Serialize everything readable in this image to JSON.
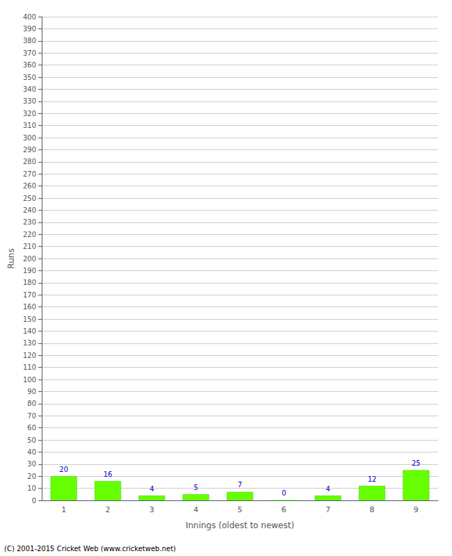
{
  "chart_data": {
    "type": "bar",
    "xlabel": "Innings (oldest to newest)",
    "ylabel": "Runs",
    "categories": [
      "1",
      "2",
      "3",
      "4",
      "5",
      "6",
      "7",
      "8",
      "9"
    ],
    "values": [
      20,
      16,
      4,
      5,
      7,
      0,
      4,
      12,
      25
    ],
    "color": "#66ff00",
    "ylim": [
      0,
      400
    ],
    "yticks": [
      0,
      10,
      20,
      30,
      40,
      50,
      60,
      70,
      80,
      90,
      100,
      110,
      120,
      130,
      140,
      150,
      160,
      170,
      180,
      190,
      200,
      210,
      220,
      230,
      240,
      250,
      260,
      270,
      280,
      290,
      300,
      310,
      320,
      330,
      340,
      350,
      360,
      370,
      380,
      390,
      400
    ],
    "grid": true,
    "data_labels": true,
    "annotations": [
      "(C) 2001-2015 Cricket Web (www.cricketweb.net)"
    ]
  }
}
